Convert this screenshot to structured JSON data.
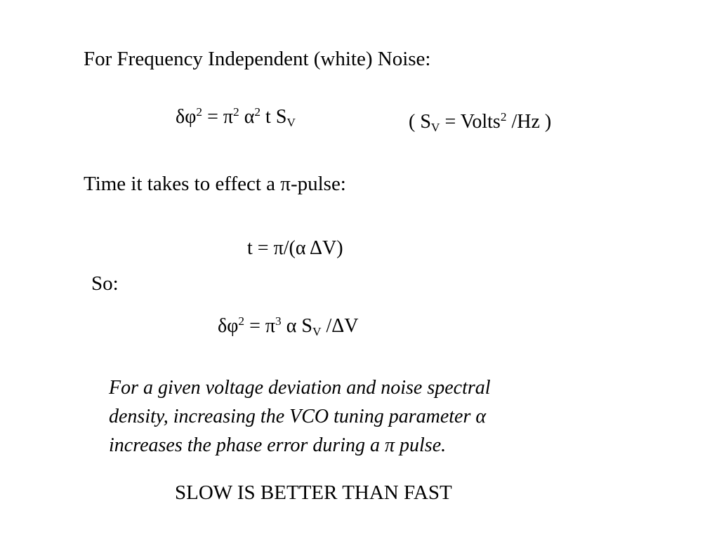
{
  "slide": {
    "heading_white_noise": "For Frequency Independent (white)  Noise:",
    "eq1": {
      "delta": "δ",
      "phi": "φ",
      "exp2a": "2",
      "eq": " = ",
      "pi": "π",
      "exp2b": "2",
      "sp1": " ",
      "alpha": "α",
      "exp2c": "2",
      "t": " t S",
      "subV": "V"
    },
    "units": {
      "open": "( S",
      "subV": "V",
      "mid": " = Volts",
      "exp": "2",
      "close": " /Hz )"
    },
    "heading_pulse": {
      "pre": "Time it takes to effect a ",
      "pi": "π",
      "post": "-pulse:"
    },
    "eq2": {
      "pre": "t = ",
      "pi": "π",
      "mid": "/(",
      "alpha": "α",
      "sp": " ",
      "delta": "Δ",
      "post": "V)"
    },
    "so_label": "So:",
    "eq3": {
      "delta": "δ",
      "phi": "φ",
      "exp2": "2",
      "eq": " = ",
      "pi": "π",
      "exp3": "3",
      "sp": " ",
      "alpha": "α",
      "s": " S",
      "subV": "V",
      "slash": " /",
      "Delta": "Δ",
      "v": "V"
    },
    "note": {
      "line1": "For a given voltage deviation and noise spectral",
      "line2_pre": "density, increasing the VCO tuning parameter ",
      "line2_alpha": "α",
      "line3_pre": "increases the phase error during a ",
      "line3_pi": "π",
      "line3_post": "  pulse."
    },
    "conclusion": "SLOW IS BETTER THAN FAST"
  }
}
